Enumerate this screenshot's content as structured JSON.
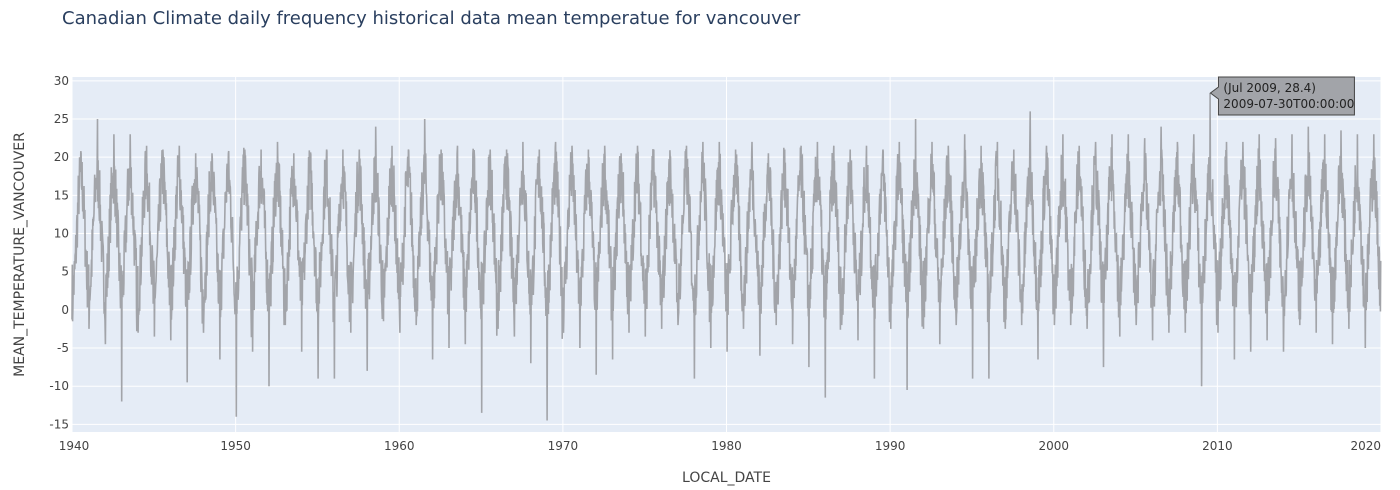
{
  "chart_data": {
    "type": "line",
    "title": "Canadian Climate daily frequency historical data mean temperatue for vancouver",
    "xlabel": "LOCAL_DATE",
    "ylabel": "MEAN_TEMPERATURE_VANCOUVER",
    "xlim": [
      "1940-01-01",
      "2020-01-01"
    ],
    "ylim": [
      -16,
      30.5
    ],
    "x_ticks": [
      "1940",
      "1950",
      "1960",
      "1970",
      "1980",
      "1990",
      "2000",
      "2010",
      "2020"
    ],
    "y_ticks": [
      "30",
      "25",
      "20",
      "15",
      "10",
      "5",
      "0",
      "-5",
      "-10",
      "-15"
    ],
    "y_tick_values": [
      30,
      25,
      20,
      15,
      10,
      5,
      0,
      -5,
      -10,
      -15
    ],
    "grid": true,
    "series": [
      {
        "color": "#a2a4a9",
        "points_note_start": "1940",
        "yearly": [
          {
            "year": 1940,
            "max": 20.5,
            "min": -1.5
          },
          {
            "year": 1941,
            "max": 25.0,
            "min": -2.5
          },
          {
            "year": 1942,
            "max": 23.0,
            "min": -4.5
          },
          {
            "year": 1943,
            "max": 23.0,
            "min": -12.0
          },
          {
            "year": 1944,
            "max": 21.5,
            "min": -3.0
          },
          {
            "year": 1945,
            "max": 21.0,
            "min": -3.5
          },
          {
            "year": 1946,
            "max": 21.5,
            "min": -4.0
          },
          {
            "year": 1947,
            "max": 20.5,
            "min": -9.5
          },
          {
            "year": 1948,
            "max": 20.5,
            "min": -3.0
          },
          {
            "year": 1949,
            "max": 20.5,
            "min": -6.5
          },
          {
            "year": 1950,
            "max": 21.0,
            "min": -14.0
          },
          {
            "year": 1951,
            "max": 21.0,
            "min": -5.5
          },
          {
            "year": 1952,
            "max": 22.0,
            "min": -10.0
          },
          {
            "year": 1953,
            "max": 20.5,
            "min": -2.0
          },
          {
            "year": 1954,
            "max": 19.5,
            "min": -5.5
          },
          {
            "year": 1955,
            "max": 21.0,
            "min": -9.0
          },
          {
            "year": 1956,
            "max": 21.0,
            "min": -9.0
          },
          {
            "year": 1957,
            "max": 21.0,
            "min": -3.0
          },
          {
            "year": 1958,
            "max": 24.0,
            "min": -8.0
          },
          {
            "year": 1959,
            "max": 21.5,
            "min": -1.5
          },
          {
            "year": 1960,
            "max": 21.0,
            "min": -3.0
          },
          {
            "year": 1961,
            "max": 25.0,
            "min": -2.0
          },
          {
            "year": 1962,
            "max": 21.0,
            "min": -6.5
          },
          {
            "year": 1963,
            "max": 21.5,
            "min": -5.0
          },
          {
            "year": 1964,
            "max": 20.5,
            "min": -4.5
          },
          {
            "year": 1965,
            "max": 21.0,
            "min": -13.5
          },
          {
            "year": 1966,
            "max": 21.0,
            "min": -2.5
          },
          {
            "year": 1967,
            "max": 22.0,
            "min": -3.5
          },
          {
            "year": 1968,
            "max": 21.0,
            "min": -7.0
          },
          {
            "year": 1969,
            "max": 22.0,
            "min": -14.5
          },
          {
            "year": 1970,
            "max": 21.5,
            "min": -3.0
          },
          {
            "year": 1971,
            "max": 21.0,
            "min": -5.0
          },
          {
            "year": 1972,
            "max": 21.5,
            "min": -8.5
          },
          {
            "year": 1973,
            "max": 20.5,
            "min": -6.5
          },
          {
            "year": 1974,
            "max": 21.5,
            "min": -3.0
          },
          {
            "year": 1975,
            "max": 21.0,
            "min": -3.5
          },
          {
            "year": 1976,
            "max": 20.0,
            "min": -2.5
          },
          {
            "year": 1977,
            "max": 21.5,
            "min": -2.0
          },
          {
            "year": 1978,
            "max": 22.0,
            "min": -9.0
          },
          {
            "year": 1979,
            "max": 22.0,
            "min": -5.0
          },
          {
            "year": 1980,
            "max": 21.0,
            "min": -5.5
          },
          {
            "year": 1981,
            "max": 22.0,
            "min": -2.5
          },
          {
            "year": 1982,
            "max": 20.5,
            "min": -6.0
          },
          {
            "year": 1983,
            "max": 21.0,
            "min": -2.0
          },
          {
            "year": 1984,
            "max": 21.5,
            "min": -4.5
          },
          {
            "year": 1985,
            "max": 22.0,
            "min": -7.5
          },
          {
            "year": 1986,
            "max": 21.5,
            "min": -11.5
          },
          {
            "year": 1987,
            "max": 21.0,
            "min": -2.0
          },
          {
            "year": 1988,
            "max": 21.5,
            "min": -4.0
          },
          {
            "year": 1989,
            "max": 21.0,
            "min": -9.0
          },
          {
            "year": 1990,
            "max": 22.0,
            "min": -2.5
          },
          {
            "year": 1991,
            "max": 25.0,
            "min": -10.5
          },
          {
            "year": 1992,
            "max": 22.0,
            "min": -2.5
          },
          {
            "year": 1993,
            "max": 21.5,
            "min": -4.5
          },
          {
            "year": 1994,
            "max": 23.0,
            "min": -2.0
          },
          {
            "year": 1995,
            "max": 21.5,
            "min": -9.0
          },
          {
            "year": 1996,
            "max": 22.0,
            "min": -9.0
          },
          {
            "year": 1997,
            "max": 21.0,
            "min": -2.5
          },
          {
            "year": 1998,
            "max": 26.0,
            "min": -2.0
          },
          {
            "year": 1999,
            "max": 21.5,
            "min": -6.5
          },
          {
            "year": 2000,
            "max": 23.0,
            "min": -2.0
          },
          {
            "year": 2001,
            "max": 21.5,
            "min": -2.0
          },
          {
            "year": 2002,
            "max": 22.0,
            "min": -2.5
          },
          {
            "year": 2003,
            "max": 23.0,
            "min": -7.5
          },
          {
            "year": 2004,
            "max": 23.0,
            "min": -3.5
          },
          {
            "year": 2005,
            "max": 22.5,
            "min": -2.0
          },
          {
            "year": 2006,
            "max": 24.0,
            "min": -4.0
          },
          {
            "year": 2007,
            "max": 22.0,
            "min": -3.0
          },
          {
            "year": 2008,
            "max": 23.0,
            "min": -3.0
          },
          {
            "year": 2009,
            "max": 28.4,
            "min": -10.0
          },
          {
            "year": 2010,
            "max": 22.0,
            "min": -3.0
          },
          {
            "year": 2011,
            "max": 22.0,
            "min": -6.5
          },
          {
            "year": 2012,
            "max": 23.0,
            "min": -5.5
          },
          {
            "year": 2013,
            "max": 22.5,
            "min": -4.0
          },
          {
            "year": 2014,
            "max": 23.0,
            "min": -5.5
          },
          {
            "year": 2015,
            "max": 24.0,
            "min": -2.0
          },
          {
            "year": 2016,
            "max": 23.0,
            "min": -3.0
          },
          {
            "year": 2017,
            "max": 23.5,
            "min": -4.5
          },
          {
            "year": 2018,
            "max": 23.0,
            "min": -2.5
          },
          {
            "year": 2019,
            "max": 23.0,
            "min": -5.0
          }
        ]
      }
    ],
    "hover_label": {
      "line1": "(Jul 2009, 28.4)",
      "line2": "2009-07-30T00:00:00",
      "x_date": "2009-07-30",
      "y": 28.4
    }
  },
  "colors": {
    "plot_bg": "#e5ecf6",
    "grid": "#ffffff",
    "line": "#a2a4a9",
    "hover_bg": "#a2a4a9",
    "title": "#2a3f5f"
  }
}
